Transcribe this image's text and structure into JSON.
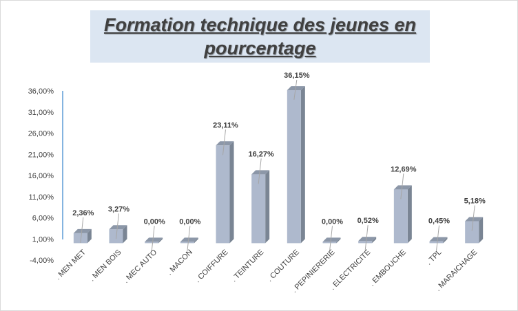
{
  "title": "Formation technique des jeunes en pourcentage",
  "colors": {
    "bar_front": "#aeb9cd",
    "bar_side": "#7a8594",
    "bar_top": "#8c97a8",
    "axis_line": "#5b9bd5",
    "label_text": "#404040",
    "leader_line": "#a6a6a6"
  },
  "chart_data": {
    "type": "bar",
    "categories": [
      ". MEN MET",
      ". MEN BOIS",
      ". MEC AUTO",
      ". MACON",
      ". COIFFURE",
      ". TEINTURE",
      ". COUTURE",
      ". PEPINIERERIE",
      ". ELECTRICITE",
      ". EMBOUCHE",
      ". TPL",
      ". MARAICHAGE"
    ],
    "values": [
      2.36,
      3.27,
      0.0,
      0.0,
      23.11,
      16.27,
      36.15,
      0.0,
      0.52,
      12.69,
      0.45,
      5.18
    ],
    "data_labels": [
      "2,36%",
      "3,27%",
      "0,00%",
      "0,00%",
      "23,11%",
      "16,27%",
      "36,15%",
      "0,00%",
      "0,52%",
      "12,69%",
      "0,45%",
      "5,18%"
    ],
    "y_ticks": [
      -4,
      1,
      6,
      11,
      16,
      21,
      26,
      31,
      36
    ],
    "y_tick_labels": [
      "-4,00%",
      "1,00%",
      "6,00%",
      "11,00%",
      "16,00%",
      "21,00%",
      "26,00%",
      "31,00%",
      "36,00%"
    ],
    "ylim": [
      -4,
      36
    ],
    "title": "Formation technique des jeunes en pourcentage",
    "xlabel": "",
    "ylabel": "",
    "grid": false,
    "legend": false,
    "style": "3d-column"
  }
}
